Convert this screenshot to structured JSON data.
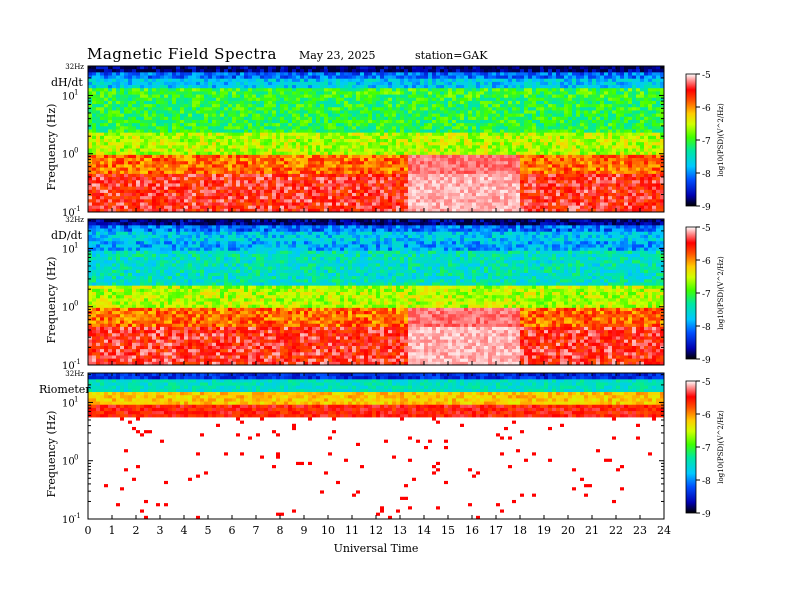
{
  "header": {
    "title": "Magnetic  Field  Spectra",
    "date": "May 23, 2025",
    "station": "station=GAK"
  },
  "chart_data": [
    {
      "type": "heatmap",
      "panel_label": "dH/dt",
      "ylabel": "Frequency  (Hz)",
      "top_tick": "32Hz",
      "y_ticks": [
        "10",
        "10",
        "10"
      ],
      "y_tick_exponents": [
        "1",
        "0",
        "-1"
      ],
      "y_scale": "log",
      "ylim": [
        0.1,
        32
      ],
      "xlim": [
        0,
        24
      ],
      "colorbar": {
        "label": "log10(PSD)(V^2/Hz)",
        "ticks": [
          "-5",
          "-6",
          "-7",
          "-8",
          "-9"
        ],
        "range": [
          -9,
          -5
        ]
      }
    },
    {
      "type": "heatmap",
      "panel_label": "dD/dt",
      "ylabel": "Frequency  (Hz)",
      "top_tick": "32Hz",
      "y_ticks": [
        "10",
        "10",
        "10"
      ],
      "y_tick_exponents": [
        "1",
        "0",
        "-1"
      ],
      "y_scale": "log",
      "ylim": [
        0.1,
        32
      ],
      "xlim": [
        0,
        24
      ],
      "colorbar": {
        "label": "log10(PSD)(V^2/Hz)",
        "ticks": [
          "-5",
          "-6",
          "-7",
          "-8",
          "-9"
        ],
        "range": [
          -9,
          -5
        ]
      }
    },
    {
      "type": "heatmap",
      "panel_label": "Riometer",
      "ylabel": "Frequency  (Hz)",
      "top_tick": "32Hz",
      "y_ticks": [
        "10",
        "10",
        "10"
      ],
      "y_tick_exponents": [
        "1",
        "0",
        "-1"
      ],
      "y_scale": "log",
      "ylim": [
        0.1,
        32
      ],
      "xlim": [
        0,
        24
      ],
      "colorbar": {
        "label": "log10(PSD)(V^2/Hz)",
        "ticks": [
          "-5",
          "-6",
          "-7",
          "-8",
          "-9"
        ],
        "range": [
          -9,
          -5
        ]
      }
    }
  ],
  "x_axis": {
    "xlabel": "Universal  Time",
    "ticks": [
      "0",
      "1",
      "2",
      "3",
      "4",
      "5",
      "6",
      "7",
      "8",
      "9",
      "10",
      "11",
      "12",
      "13",
      "14",
      "15",
      "16",
      "17",
      "18",
      "19",
      "20",
      "21",
      "22",
      "23",
      "24"
    ]
  }
}
